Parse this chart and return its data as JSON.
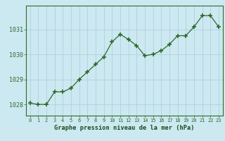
{
  "x": [
    0,
    1,
    2,
    3,
    4,
    5,
    6,
    7,
    8,
    9,
    10,
    11,
    12,
    13,
    14,
    15,
    16,
    17,
    18,
    19,
    20,
    21,
    22,
    23
  ],
  "y": [
    1028.05,
    1028.0,
    1028.0,
    1028.5,
    1028.5,
    1028.65,
    1029.0,
    1029.3,
    1029.6,
    1029.9,
    1030.5,
    1030.8,
    1030.6,
    1030.35,
    1029.95,
    1030.0,
    1030.15,
    1030.4,
    1030.75,
    1030.75,
    1031.1,
    1031.55,
    1031.55,
    1031.1
  ],
  "line_color": "#2d6a2d",
  "marker_color": "#2d6a2d",
  "bg_color": "#cce8f0",
  "grid_color": "#aaccdd",
  "xlabel": "Graphe pression niveau de la mer (hPa)",
  "xlabel_color": "#1a4a1a",
  "tick_color": "#2d6a2d",
  "yticks": [
    1028,
    1029,
    1030,
    1031
  ],
  "xticks": [
    0,
    1,
    2,
    3,
    4,
    5,
    6,
    7,
    8,
    9,
    10,
    11,
    12,
    13,
    14,
    15,
    16,
    17,
    18,
    19,
    20,
    21,
    22,
    23
  ],
  "ylim": [
    1027.55,
    1031.95
  ],
  "xlim": [
    -0.5,
    23.5
  ]
}
